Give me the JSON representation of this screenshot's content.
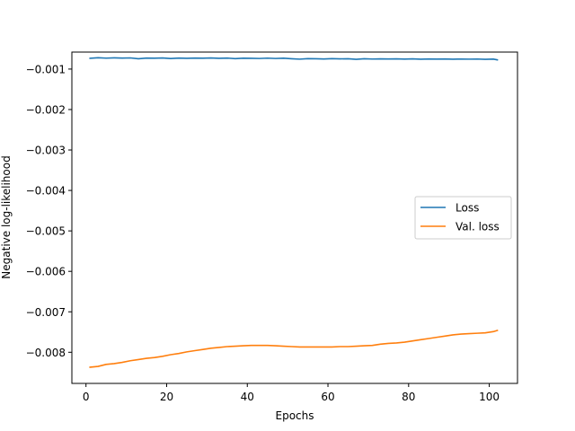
{
  "chart_data": {
    "type": "line",
    "title": "",
    "xlabel": "Epochs",
    "ylabel": "Negative log-likelihood",
    "xlim": [
      -3.5,
      107
    ],
    "ylim": [
      -0.00877,
      -0.00058
    ],
    "xticks": [
      0,
      20,
      40,
      60,
      80,
      100
    ],
    "xtick_labels": [
      "0",
      "20",
      "40",
      "60",
      "80",
      "100"
    ],
    "yticks": [
      -0.001,
      -0.002,
      -0.003,
      -0.004,
      -0.005,
      -0.006,
      -0.007,
      -0.008
    ],
    "ytick_labels": [
      "−0.001",
      "−0.002",
      "−0.003",
      "−0.004",
      "−0.005",
      "−0.006",
      "−0.007",
      "−0.008"
    ],
    "grid": false,
    "legend": "center-right",
    "x": [
      1,
      3,
      5,
      7,
      9,
      11,
      13,
      15,
      17,
      19,
      21,
      23,
      25,
      27,
      29,
      31,
      33,
      35,
      37,
      39,
      41,
      43,
      45,
      47,
      49,
      51,
      53,
      55,
      57,
      59,
      61,
      63,
      65,
      67,
      69,
      71,
      73,
      75,
      77,
      79,
      81,
      83,
      85,
      87,
      89,
      91,
      93,
      95,
      97,
      99,
      101,
      102
    ],
    "series": [
      {
        "name": "Loss",
        "color": "#1f77b4",
        "values": [
          -0.000734,
          -0.00072,
          -0.00073,
          -0.000722,
          -0.000728,
          -0.000724,
          -0.000745,
          -0.000728,
          -0.000732,
          -0.000726,
          -0.00074,
          -0.000728,
          -0.000733,
          -0.000728,
          -0.000732,
          -0.000726,
          -0.000735,
          -0.000728,
          -0.000742,
          -0.000731,
          -0.000735,
          -0.000738,
          -0.00073,
          -0.000738,
          -0.000731,
          -0.000744,
          -0.000755,
          -0.000742,
          -0.000746,
          -0.00075,
          -0.000742,
          -0.000748,
          -0.000744,
          -0.000758,
          -0.000746,
          -0.000752,
          -0.000747,
          -0.000751,
          -0.000748,
          -0.000753,
          -0.000749,
          -0.000757,
          -0.00075,
          -0.000753,
          -0.000751,
          -0.000756,
          -0.000752,
          -0.000755,
          -0.000752,
          -0.000758,
          -0.000754,
          -0.000772
        ]
      },
      {
        "name": "Val. loss",
        "color": "#ff7f0e",
        "values": [
          -0.00837,
          -0.00835,
          -0.0083,
          -0.00828,
          -0.00825,
          -0.00821,
          -0.00818,
          -0.00815,
          -0.00813,
          -0.0081,
          -0.00806,
          -0.00803,
          -0.00799,
          -0.00796,
          -0.00793,
          -0.0079,
          -0.00788,
          -0.00786,
          -0.00785,
          -0.00784,
          -0.00783,
          -0.00783,
          -0.00783,
          -0.00784,
          -0.00785,
          -0.00786,
          -0.00787,
          -0.00787,
          -0.00787,
          -0.00787,
          -0.00787,
          -0.00786,
          -0.00786,
          -0.00785,
          -0.00784,
          -0.00783,
          -0.0078,
          -0.00778,
          -0.00777,
          -0.00775,
          -0.00772,
          -0.00769,
          -0.00766,
          -0.00763,
          -0.0076,
          -0.00757,
          -0.00755,
          -0.00754,
          -0.00753,
          -0.00752,
          -0.00749,
          -0.00746
        ]
      }
    ]
  }
}
